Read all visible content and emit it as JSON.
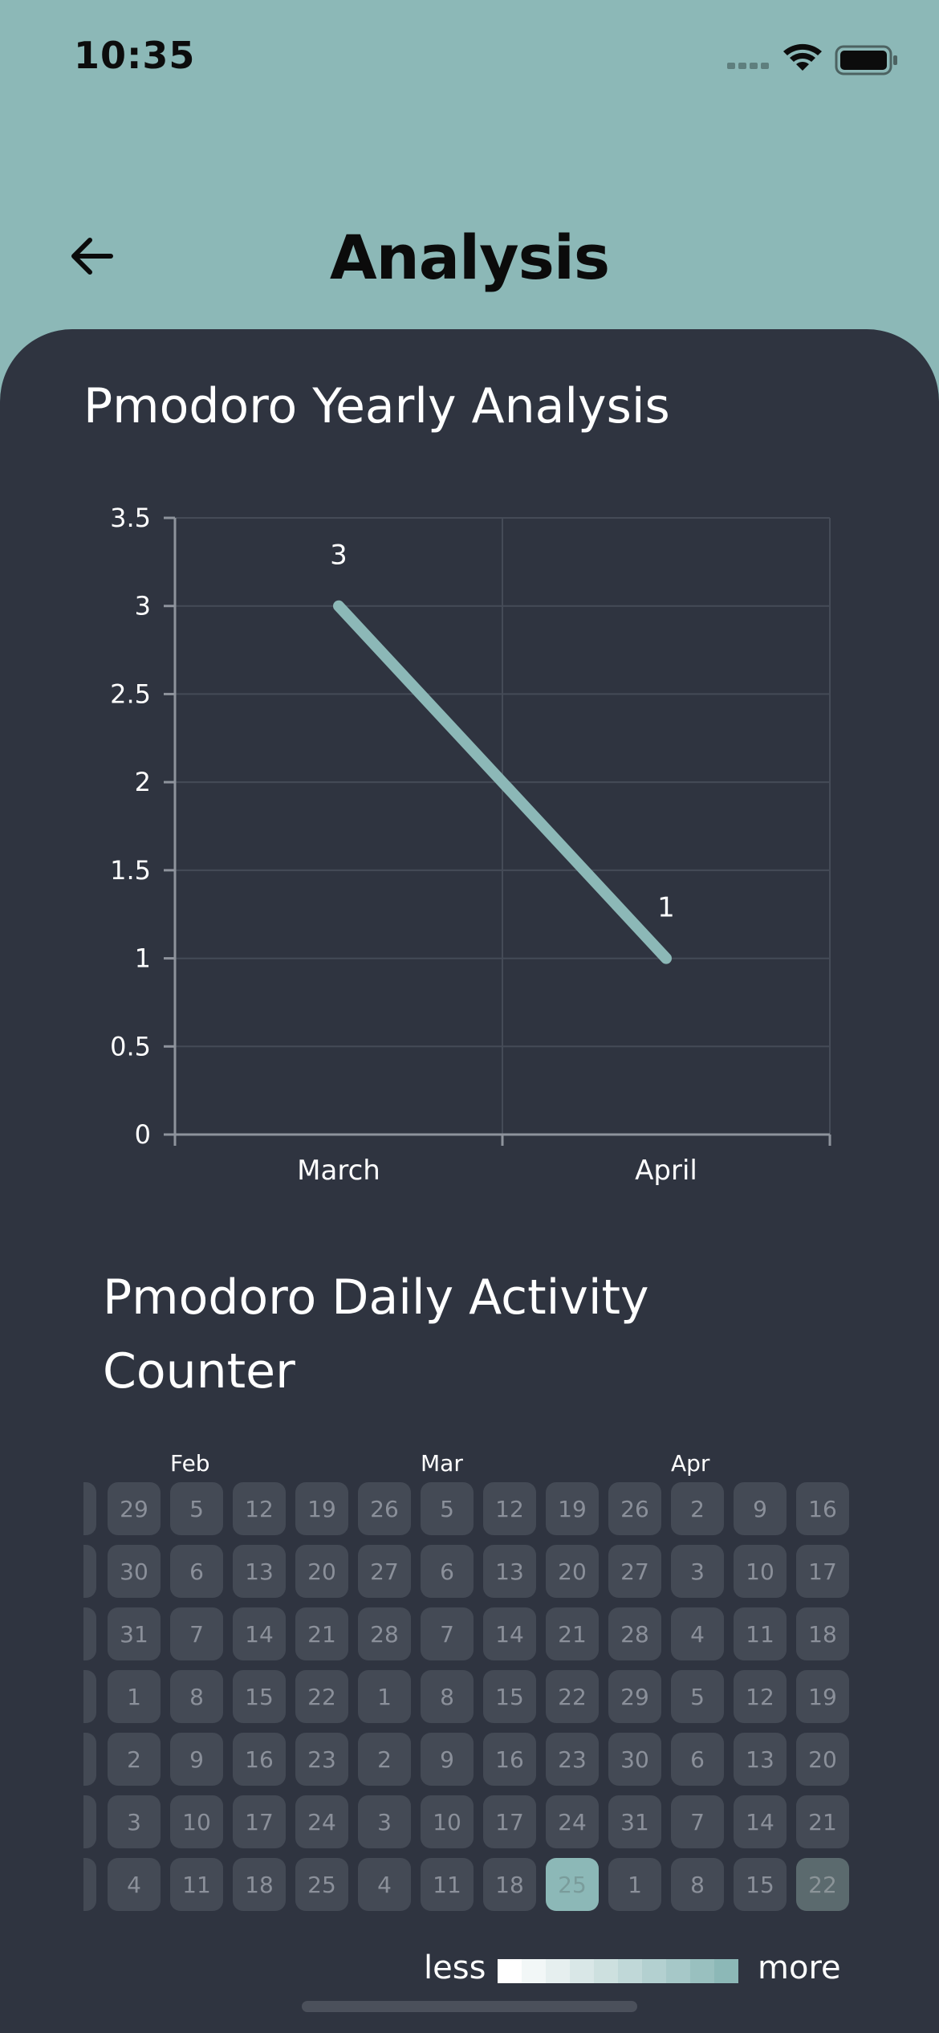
{
  "status_bar": {
    "time": "10:35"
  },
  "header": {
    "title": "Analysis",
    "back_icon": "arrow-left-icon"
  },
  "yearly_section": {
    "title": "Pmodoro Yearly Analysis"
  },
  "chart_data": {
    "type": "line",
    "title": "Pmodoro Yearly Analysis",
    "categories": [
      "March",
      "April"
    ],
    "values": [
      3,
      1
    ],
    "data_labels": [
      "3",
      "1"
    ],
    "y_ticks": [
      "0",
      "0.5",
      "1",
      "1.5",
      "2",
      "2.5",
      "3",
      "3.5"
    ],
    "ylim": [
      0,
      3.5
    ],
    "grid": true,
    "line_color": "#8cb8b7"
  },
  "daily_section": {
    "title": "Pmodoro Daily Activity Counter",
    "months": [
      "Feb",
      "Mar",
      "Apr"
    ],
    "weeks": [
      [
        "29",
        "30",
        "31",
        "1",
        "2",
        "3",
        "4"
      ],
      [
        "5",
        "6",
        "7",
        "8",
        "9",
        "10",
        "11"
      ],
      [
        "12",
        "13",
        "14",
        "15",
        "16",
        "17",
        "18"
      ],
      [
        "19",
        "20",
        "21",
        "22",
        "23",
        "24",
        "25"
      ],
      [
        "26",
        "27",
        "28",
        "1",
        "2",
        "3",
        "4"
      ],
      [
        "5",
        "6",
        "7",
        "8",
        "9",
        "10",
        "11"
      ],
      [
        "12",
        "13",
        "14",
        "15",
        "16",
        "17",
        "18"
      ],
      [
        "19",
        "20",
        "21",
        "22",
        "23",
        "24",
        "25"
      ],
      [
        "26",
        "27",
        "28",
        "29",
        "30",
        "31",
        "1"
      ],
      [
        "2",
        "3",
        "4",
        "5",
        "6",
        "7",
        "8"
      ],
      [
        "9",
        "10",
        "11",
        "12",
        "13",
        "14",
        "15"
      ],
      [
        "16",
        "17",
        "18",
        "19",
        "20",
        "21",
        "22"
      ]
    ],
    "active_days": [
      {
        "week": 7,
        "day": 6,
        "level": 1
      },
      {
        "week": 11,
        "day": 6,
        "level": 2
      }
    ]
  },
  "legend": {
    "less_label": "less",
    "more_label": "more",
    "scale_colors": [
      "#ffffff",
      "#f2f7f7",
      "#e6efef",
      "#d9e7e7",
      "#cde0df",
      "#c0d8d8",
      "#b3d0d0",
      "#a6c8c8",
      "#99c0bf",
      "#8cb8b7"
    ]
  },
  "colors": {
    "accent": "#8cb8b7",
    "panel": "#2f3440",
    "cell": "#444a55"
  }
}
